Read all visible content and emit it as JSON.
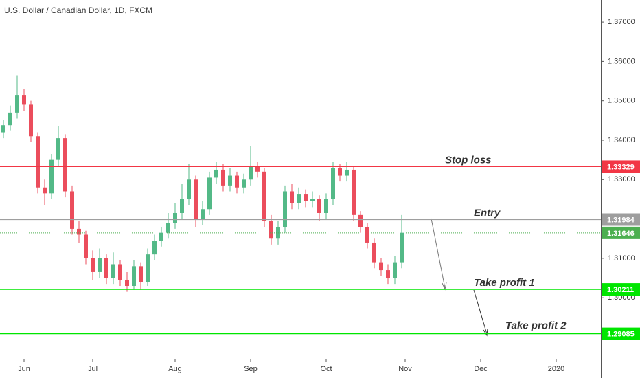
{
  "chart_data": {
    "type": "candlestick",
    "title": "U.S. Dollar / Canadian Dollar, 1D, FXCM",
    "up_color": "#53b987",
    "down_color": "#eb4d5c",
    "x": [
      0,
      2,
      4,
      6,
      8,
      10,
      12,
      14,
      16,
      18,
      20,
      22,
      24,
      26,
      28,
      30,
      32,
      34,
      36,
      38,
      40,
      42,
      44,
      46,
      48,
      50,
      52,
      54,
      56,
      58,
      60,
      62,
      64,
      66,
      68,
      70,
      72,
      74,
      76,
      78,
      80,
      82,
      84,
      86,
      88,
      90,
      92,
      94,
      96,
      98,
      100,
      102,
      104,
      106,
      108,
      110,
      112,
      114,
      116
    ],
    "open": [
      1.342,
      1.3438,
      1.347,
      1.3515,
      1.349,
      1.341,
      1.328,
      1.3265,
      1.335,
      1.3405,
      1.327,
      1.3175,
      1.316,
      1.31,
      1.3065,
      1.31,
      1.305,
      1.3085,
      1.3045,
      1.303,
      1.308,
      1.304,
      1.311,
      1.3145,
      1.3165,
      1.319,
      1.3215,
      1.325,
      1.33,
      1.32,
      1.3225,
      1.3305,
      1.3325,
      1.3285,
      1.331,
      1.328,
      1.33,
      1.3335,
      1.332,
      1.3195,
      1.315,
      1.318,
      1.327,
      1.324,
      1.3262,
      1.3245,
      1.325,
      1.3215,
      1.325,
      1.333,
      1.331,
      1.3325,
      1.321,
      1.318,
      1.314,
      1.309,
      1.307,
      1.305,
      1.309
    ],
    "high": [
      1.3452,
      1.3488,
      1.3565,
      1.353,
      1.35,
      1.342,
      1.33,
      1.3365,
      1.3435,
      1.3415,
      1.3285,
      1.3195,
      1.317,
      1.312,
      1.3125,
      1.311,
      1.3115,
      1.3095,
      1.3065,
      1.3095,
      1.309,
      1.3125,
      1.316,
      1.318,
      1.3215,
      1.324,
      1.329,
      1.334,
      1.331,
      1.3245,
      1.332,
      1.3345,
      1.334,
      1.333,
      1.332,
      1.3315,
      1.3385,
      1.3345,
      1.333,
      1.321,
      1.3195,
      1.3285,
      1.329,
      1.328,
      1.3275,
      1.327,
      1.326,
      1.3265,
      1.3345,
      1.334,
      1.3345,
      1.3335,
      1.322,
      1.319,
      1.315,
      1.31,
      1.3085,
      1.3105,
      1.321
    ],
    "low": [
      1.3405,
      1.3425,
      1.3455,
      1.3475,
      1.3395,
      1.3265,
      1.3235,
      1.325,
      1.3335,
      1.3255,
      1.316,
      1.314,
      1.3085,
      1.3045,
      1.305,
      1.3035,
      1.3035,
      1.303,
      1.3015,
      1.302,
      1.302,
      1.303,
      1.3095,
      1.313,
      1.315,
      1.3175,
      1.32,
      1.3235,
      1.318,
      1.3185,
      1.321,
      1.329,
      1.327,
      1.327,
      1.3265,
      1.3265,
      1.3285,
      1.3305,
      1.318,
      1.3135,
      1.3135,
      1.3165,
      1.3225,
      1.3225,
      1.323,
      1.323,
      1.3195,
      1.32,
      1.3235,
      1.3295,
      1.3295,
      1.3195,
      1.3165,
      1.3125,
      1.3075,
      1.3055,
      1.3035,
      1.3035,
      1.3075
    ],
    "close": [
      1.3438,
      1.347,
      1.3515,
      1.349,
      1.341,
      1.328,
      1.3265,
      1.335,
      1.3405,
      1.327,
      1.3175,
      1.316,
      1.31,
      1.3065,
      1.31,
      1.305,
      1.3085,
      1.3045,
      1.303,
      1.308,
      1.304,
      1.311,
      1.3145,
      1.3165,
      1.319,
      1.3215,
      1.325,
      1.33,
      1.32,
      1.3225,
      1.3305,
      1.3325,
      1.3285,
      1.331,
      1.328,
      1.33,
      1.3335,
      1.332,
      1.3195,
      1.315,
      1.318,
      1.327,
      1.324,
      1.3262,
      1.3245,
      1.325,
      1.3215,
      1.325,
      1.333,
      1.331,
      1.3325,
      1.321,
      1.318,
      1.314,
      1.309,
      1.307,
      1.305,
      1.309,
      1.3165
    ],
    "xlim": [
      -1,
      174
    ],
    "xticks": [
      {
        "value": 6,
        "label": "Jun"
      },
      {
        "value": 26,
        "label": "Jul"
      },
      {
        "value": 50,
        "label": "Aug"
      },
      {
        "value": 72,
        "label": "Sep"
      },
      {
        "value": 94,
        "label": "Oct"
      },
      {
        "value": 117,
        "label": "Nov"
      },
      {
        "value": 139,
        "label": "Dec"
      },
      {
        "value": 161,
        "label": "2020"
      }
    ],
    "ylim": [
      1.2845,
      1.3756
    ],
    "yticks": [
      {
        "value": 1.37,
        "label": "1.37000"
      },
      {
        "value": 1.36,
        "label": "1.36000"
      },
      {
        "value": 1.35,
        "label": "1.35000"
      },
      {
        "value": 1.34,
        "label": "1.34000"
      },
      {
        "value": 1.33,
        "label": "1.33000"
      },
      {
        "value": 1.31,
        "label": "1.31000"
      },
      {
        "value": 1.3,
        "label": "1.30000"
      }
    ],
    "levels": [
      {
        "name": "Stop loss",
        "value": 1.33329,
        "color": "#f23645"
      },
      {
        "name": "Entry",
        "value": 1.31984,
        "color": "#9e9e9e"
      },
      {
        "name": "Take profit 1",
        "value": 1.30211,
        "color": "#00e600"
      },
      {
        "name": "Take profit 2",
        "value": 1.29085,
        "color": "#00e600"
      }
    ],
    "last_price": 1.31646,
    "last_price_color": "#4caf50"
  }
}
